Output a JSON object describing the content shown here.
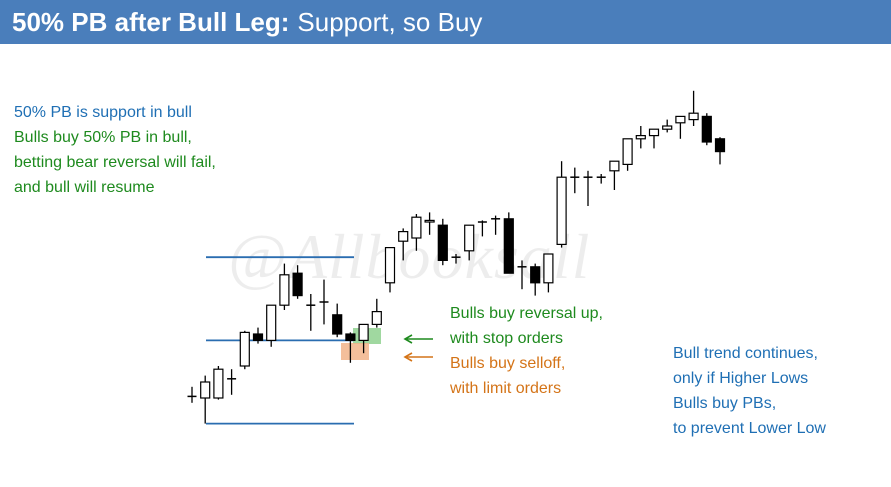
{
  "header": {
    "title_bold": "50% PB after Bull Leg:",
    "title_rest": "Support, so Buy",
    "background": "#4a7ebb"
  },
  "watermark": "@Allbooksall",
  "notes": {
    "top_left": [
      {
        "text": "50% PB is support in bull",
        "color": "blue"
      },
      {
        "text": "Bulls buy 50% PB in bull,",
        "color": "green"
      },
      {
        "text": "betting bear reversal will fail,",
        "color": "green"
      },
      {
        "text": "and bull will resume",
        "color": "green"
      }
    ],
    "middle": [
      {
        "text": "Bulls buy reversal up,",
        "color": "green"
      },
      {
        "text": "with stop orders",
        "color": "green"
      },
      {
        "text": "Bulls buy selloff,",
        "color": "orange"
      },
      {
        "text": "with limit orders",
        "color": "orange"
      }
    ],
    "right": [
      {
        "text": "Bull trend continues,",
        "color": "blue"
      },
      {
        "text": "only if Higher Lows",
        "color": "blue"
      },
      {
        "text": "Bulls buy PBs,",
        "color": "blue"
      },
      {
        "text": "to prevent Lower Low",
        "color": "blue"
      }
    ]
  },
  "colors": {
    "blue": "#1f6fb4",
    "green": "#1e8a1e",
    "orange": "#d47418",
    "level_line": "#2a6db0",
    "green_box": "#8fd18f",
    "orange_box": "#f2b48a"
  },
  "chart_data": {
    "type": "candlestick",
    "ylim": [
      0,
      100
    ],
    "levels": [
      {
        "name": "high",
        "value": 59
      },
      {
        "name": "50% pullback",
        "value": 33
      },
      {
        "name": "low",
        "value": 7
      }
    ],
    "candles": [
      {
        "o": 15.5,
        "h": 18.5,
        "l": 13.5,
        "c": 15.5
      },
      {
        "o": 15.0,
        "h": 22.0,
        "l": 7.0,
        "c": 20.0
      },
      {
        "o": 15.0,
        "h": 25.0,
        "l": 14.5,
        "c": 24.0
      },
      {
        "o": 21.0,
        "h": 24.0,
        "l": 16.0,
        "c": 21.0
      },
      {
        "o": 25.0,
        "h": 36.0,
        "l": 24.0,
        "c": 35.5
      },
      {
        "o": 35.0,
        "h": 37.0,
        "l": 32.0,
        "c": 33.0
      },
      {
        "o": 33.0,
        "h": 44.0,
        "l": 31.0,
        "c": 44.0
      },
      {
        "o": 44.0,
        "h": 57.0,
        "l": 42.5,
        "c": 53.5
      },
      {
        "o": 54.0,
        "h": 56.5,
        "l": 46.0,
        "c": 47.0
      },
      {
        "o": 44.0,
        "h": 47.5,
        "l": 36.0,
        "c": 44.0
      },
      {
        "o": 45.0,
        "h": 52.0,
        "l": 38.0,
        "c": 45.0
      },
      {
        "o": 41.0,
        "h": 44.5,
        "l": 34.0,
        "c": 35.0
      },
      {
        "o": 35.0,
        "h": 35.5,
        "l": 26.0,
        "c": 33.0
      },
      {
        "o": 33.0,
        "h": 38.0,
        "l": 29.0,
        "c": 38.0
      },
      {
        "o": 38.0,
        "h": 46.0,
        "l": 37.0,
        "c": 42.0
      },
      {
        "o": 51.0,
        "h": 62.0,
        "l": 48.0,
        "c": 62.0
      },
      {
        "o": 64.0,
        "h": 68.0,
        "l": 58.0,
        "c": 67.0
      },
      {
        "o": 65.0,
        "h": 72.5,
        "l": 61.0,
        "c": 71.5
      },
      {
        "o": 70.0,
        "h": 73.0,
        "l": 66.0,
        "c": 70.5
      },
      {
        "o": 69.0,
        "h": 71.0,
        "l": 56.5,
        "c": 58.0
      },
      {
        "o": 59.0,
        "h": 60.0,
        "l": 57.0,
        "c": 59.0
      },
      {
        "o": 61.0,
        "h": 69.0,
        "l": 58.0,
        "c": 69.0
      },
      {
        "o": 70.0,
        "h": 70.5,
        "l": 65.5,
        "c": 70.0
      },
      {
        "o": 71.0,
        "h": 72.0,
        "l": 66.0,
        "c": 71.0
      },
      {
        "o": 71.0,
        "h": 73.0,
        "l": 54.0,
        "c": 54.0
      },
      {
        "o": 56.0,
        "h": 58.0,
        "l": 49.0,
        "c": 56.0
      },
      {
        "o": 56.0,
        "h": 57.0,
        "l": 47.0,
        "c": 51.0
      },
      {
        "o": 51.0,
        "h": 60.0,
        "l": 48.0,
        "c": 60.0
      },
      {
        "o": 63.0,
        "h": 89.0,
        "l": 62.0,
        "c": 84.0
      },
      {
        "o": 84.0,
        "h": 87.0,
        "l": 79.0,
        "c": 84.0
      },
      {
        "o": 84.0,
        "h": 86.0,
        "l": 75.0,
        "c": 84.0
      },
      {
        "o": 84.0,
        "h": 85.0,
        "l": 82.0,
        "c": 84.0
      },
      {
        "o": 86.0,
        "h": 89.0,
        "l": 80.0,
        "c": 89.0
      },
      {
        "o": 88.0,
        "h": 96.0,
        "l": 86.0,
        "c": 96.0
      },
      {
        "o": 96.0,
        "h": 100.0,
        "l": 93.0,
        "c": 97.0
      },
      {
        "o": 97.0,
        "h": 99.0,
        "l": 93.0,
        "c": 99.0
      },
      {
        "o": 99.0,
        "h": 102.0,
        "l": 98.0,
        "c": 100.0
      },
      {
        "o": 101.0,
        "h": 103.0,
        "l": 96.0,
        "c": 103.0
      },
      {
        "o": 102.0,
        "h": 111.0,
        "l": 100.0,
        "c": 104.0
      },
      {
        "o": 103.0,
        "h": 104.0,
        "l": 94.0,
        "c": 95.0
      },
      {
        "o": 96.0,
        "h": 96.5,
        "l": 88.0,
        "c": 92.0
      }
    ]
  }
}
